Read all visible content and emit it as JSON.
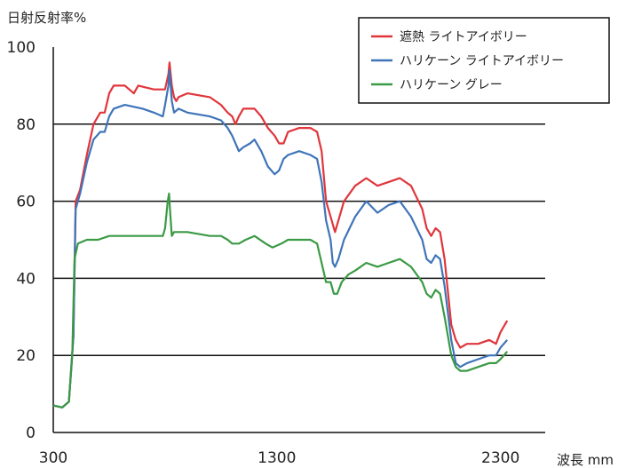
{
  "chart_data": {
    "type": "line",
    "ylabel": "日射反射率%",
    "xlabel": "波長 mm",
    "xlim": [
      300,
      2500
    ],
    "ylim": [
      0,
      100
    ],
    "xticks": [
      300,
      1300,
      2300
    ],
    "yticks": [
      0,
      20,
      40,
      60,
      80,
      100
    ],
    "grid": "horizontal lines at 20, 40, 60, 80",
    "legend_position": "top-right",
    "series": [
      {
        "name": "遮熱 ライトアイボリー",
        "color": "#e0353b",
        "points": [
          [
            300,
            7
          ],
          [
            340,
            6.5
          ],
          [
            370,
            8
          ],
          [
            390,
            25
          ],
          [
            400,
            60
          ],
          [
            420,
            63
          ],
          [
            450,
            72
          ],
          [
            480,
            80
          ],
          [
            510,
            83
          ],
          [
            530,
            83
          ],
          [
            550,
            88
          ],
          [
            570,
            90
          ],
          [
            620,
            90
          ],
          [
            640,
            89
          ],
          [
            660,
            88
          ],
          [
            680,
            90
          ],
          [
            750,
            89
          ],
          [
            800,
            89
          ],
          [
            815,
            93
          ],
          [
            820,
            96
          ],
          [
            830,
            90
          ],
          [
            840,
            87
          ],
          [
            850,
            86
          ],
          [
            860,
            87
          ],
          [
            900,
            88
          ],
          [
            1000,
            87
          ],
          [
            1050,
            85
          ],
          [
            1080,
            83
          ],
          [
            1100,
            82
          ],
          [
            1115,
            80
          ],
          [
            1130,
            82
          ],
          [
            1150,
            84
          ],
          [
            1200,
            84
          ],
          [
            1230,
            82
          ],
          [
            1260,
            79
          ],
          [
            1290,
            77
          ],
          [
            1310,
            75
          ],
          [
            1330,
            75
          ],
          [
            1350,
            78
          ],
          [
            1400,
            79
          ],
          [
            1450,
            79
          ],
          [
            1480,
            78
          ],
          [
            1500,
            73
          ],
          [
            1520,
            60
          ],
          [
            1540,
            56
          ],
          [
            1560,
            52
          ],
          [
            1575,
            55
          ],
          [
            1600,
            60
          ],
          [
            1650,
            64
          ],
          [
            1700,
            66
          ],
          [
            1750,
            64
          ],
          [
            1800,
            65
          ],
          [
            1850,
            66
          ],
          [
            1900,
            64
          ],
          [
            1950,
            58
          ],
          [
            1970,
            53
          ],
          [
            1990,
            51
          ],
          [
            2010,
            53
          ],
          [
            2030,
            52
          ],
          [
            2050,
            45
          ],
          [
            2080,
            28
          ],
          [
            2100,
            24
          ],
          [
            2120,
            22
          ],
          [
            2150,
            23
          ],
          [
            2200,
            23
          ],
          [
            2250,
            24
          ],
          [
            2280,
            23
          ],
          [
            2300,
            26
          ],
          [
            2330,
            29
          ]
        ]
      },
      {
        "name": "ハリケーン ライトアイボリー",
        "color": "#3f74b8",
        "points": [
          [
            300,
            7
          ],
          [
            340,
            6.5
          ],
          [
            370,
            8
          ],
          [
            390,
            25
          ],
          [
            400,
            58
          ],
          [
            420,
            62
          ],
          [
            450,
            70
          ],
          [
            480,
            76
          ],
          [
            510,
            78
          ],
          [
            530,
            78
          ],
          [
            550,
            82
          ],
          [
            570,
            84
          ],
          [
            620,
            85
          ],
          [
            700,
            84
          ],
          [
            750,
            83
          ],
          [
            790,
            82
          ],
          [
            800,
            85
          ],
          [
            815,
            90
          ],
          [
            820,
            94
          ],
          [
            830,
            86
          ],
          [
            840,
            83
          ],
          [
            860,
            84
          ],
          [
            900,
            83
          ],
          [
            1000,
            82
          ],
          [
            1050,
            81
          ],
          [
            1080,
            79
          ],
          [
            1100,
            77
          ],
          [
            1130,
            73
          ],
          [
            1150,
            74
          ],
          [
            1180,
            75
          ],
          [
            1200,
            76
          ],
          [
            1230,
            73
          ],
          [
            1260,
            69
          ],
          [
            1290,
            67
          ],
          [
            1310,
            68
          ],
          [
            1330,
            71
          ],
          [
            1350,
            72
          ],
          [
            1400,
            73
          ],
          [
            1450,
            72
          ],
          [
            1480,
            71
          ],
          [
            1500,
            65
          ],
          [
            1520,
            55
          ],
          [
            1540,
            50
          ],
          [
            1550,
            44
          ],
          [
            1560,
            43
          ],
          [
            1575,
            45
          ],
          [
            1600,
            50
          ],
          [
            1650,
            56
          ],
          [
            1700,
            60
          ],
          [
            1750,
            57
          ],
          [
            1800,
            59
          ],
          [
            1850,
            60
          ],
          [
            1900,
            56
          ],
          [
            1950,
            50
          ],
          [
            1970,
            45
          ],
          [
            1990,
            44
          ],
          [
            2010,
            46
          ],
          [
            2030,
            45
          ],
          [
            2050,
            38
          ],
          [
            2080,
            24
          ],
          [
            2100,
            18
          ],
          [
            2120,
            17
          ],
          [
            2150,
            18
          ],
          [
            2200,
            19
          ],
          [
            2250,
            20
          ],
          [
            2280,
            20
          ],
          [
            2300,
            22
          ],
          [
            2330,
            24
          ]
        ]
      },
      {
        "name": "ハリケーン グレー",
        "color": "#3a9a45",
        "points": [
          [
            300,
            7
          ],
          [
            340,
            6.5
          ],
          [
            370,
            8
          ],
          [
            385,
            20
          ],
          [
            395,
            45
          ],
          [
            410,
            49
          ],
          [
            450,
            50
          ],
          [
            500,
            50
          ],
          [
            550,
            51
          ],
          [
            600,
            51
          ],
          [
            700,
            51
          ],
          [
            790,
            51
          ],
          [
            800,
            53
          ],
          [
            812,
            60
          ],
          [
            818,
            62
          ],
          [
            822,
            58
          ],
          [
            830,
            51
          ],
          [
            840,
            52
          ],
          [
            900,
            52
          ],
          [
            1000,
            51
          ],
          [
            1050,
            51
          ],
          [
            1080,
            50
          ],
          [
            1100,
            49
          ],
          [
            1130,
            49
          ],
          [
            1160,
            50
          ],
          [
            1200,
            51
          ],
          [
            1250,
            49
          ],
          [
            1280,
            48
          ],
          [
            1320,
            49
          ],
          [
            1350,
            50
          ],
          [
            1400,
            50
          ],
          [
            1450,
            50
          ],
          [
            1480,
            49
          ],
          [
            1500,
            44
          ],
          [
            1520,
            39
          ],
          [
            1540,
            39
          ],
          [
            1555,
            36
          ],
          [
            1570,
            36
          ],
          [
            1590,
            39
          ],
          [
            1620,
            41
          ],
          [
            1650,
            42
          ],
          [
            1700,
            44
          ],
          [
            1750,
            43
          ],
          [
            1800,
            44
          ],
          [
            1850,
            45
          ],
          [
            1900,
            43
          ],
          [
            1950,
            39
          ],
          [
            1970,
            36
          ],
          [
            1990,
            35
          ],
          [
            2010,
            37
          ],
          [
            2030,
            36
          ],
          [
            2050,
            30
          ],
          [
            2080,
            20
          ],
          [
            2100,
            17
          ],
          [
            2120,
            16
          ],
          [
            2150,
            16
          ],
          [
            2200,
            17
          ],
          [
            2250,
            18
          ],
          [
            2280,
            18
          ],
          [
            2300,
            19
          ],
          [
            2330,
            21
          ]
        ]
      }
    ]
  }
}
